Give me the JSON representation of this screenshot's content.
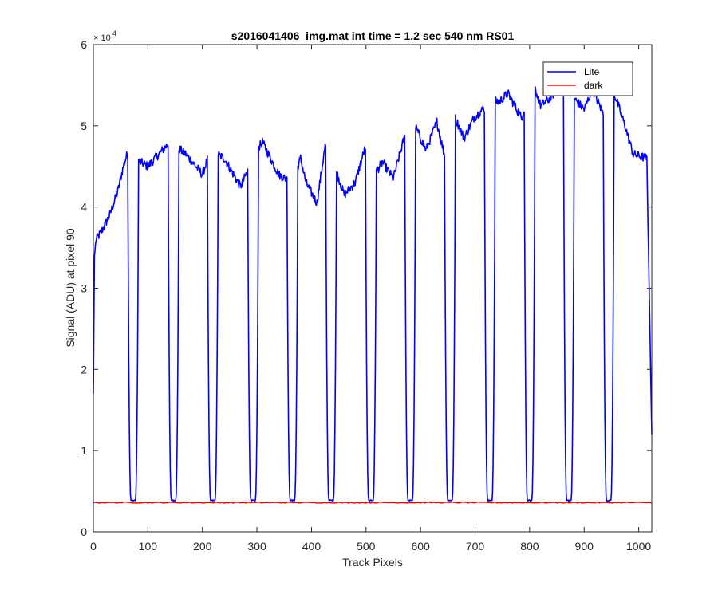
{
  "chart_data": {
    "type": "line",
    "title": "s2016041406_img.mat int time = 1.2 sec  540 nm RS01",
    "xlabel": "Track Pixels",
    "ylabel": "Signal (ADU) at pixel 90",
    "xlim": [
      0,
      1024
    ],
    "ylim": [
      0,
      60000
    ],
    "xticks": [
      0,
      100,
      200,
      300,
      400,
      500,
      600,
      700,
      800,
      900,
      1000
    ],
    "yticks": [
      0,
      10000,
      20000,
      30000,
      40000,
      50000,
      60000
    ],
    "ytick_labels": [
      "0",
      "1",
      "2",
      "3",
      "4",
      "5",
      "6"
    ],
    "y_exponent_base": "× 10",
    "y_exponent_power": "4",
    "grid": false,
    "legend_position": "top-right",
    "series": [
      {
        "name": "Lite",
        "color": "#0000ff",
        "baseline_points": [
          [
            0,
            17000
          ],
          [
            2,
            34000
          ],
          [
            5,
            36000
          ],
          [
            15,
            37000
          ],
          [
            30,
            39000
          ],
          [
            45,
            42000
          ],
          [
            55,
            45000
          ],
          [
            62,
            46500
          ],
          [
            100,
            45000
          ],
          [
            140,
            48000
          ],
          [
            170,
            46500
          ],
          [
            200,
            44000
          ],
          [
            215,
            47000
          ],
          [
            240,
            46000
          ],
          [
            270,
            42500
          ],
          [
            300,
            47000
          ],
          [
            310,
            48000
          ],
          [
            340,
            44000
          ],
          [
            365,
            43000
          ],
          [
            380,
            46000
          ],
          [
            390,
            43000
          ],
          [
            410,
            40500
          ],
          [
            425,
            47500
          ],
          [
            445,
            44500
          ],
          [
            460,
            41500
          ],
          [
            480,
            43000
          ],
          [
            497,
            47000
          ],
          [
            515,
            44000
          ],
          [
            530,
            45500
          ],
          [
            550,
            43500
          ],
          [
            570,
            48500
          ],
          [
            590,
            50000
          ],
          [
            610,
            47000
          ],
          [
            630,
            50500
          ],
          [
            645,
            46000
          ],
          [
            660,
            51500
          ],
          [
            680,
            48500
          ],
          [
            698,
            51000
          ],
          [
            730,
            53000
          ],
          [
            745,
            53000
          ],
          [
            760,
            54000
          ],
          [
            785,
            51000
          ],
          [
            805,
            55500
          ],
          [
            820,
            52500
          ],
          [
            840,
            53500
          ],
          [
            855,
            55500
          ],
          [
            880,
            53500
          ],
          [
            900,
            52000
          ],
          [
            915,
            54500
          ],
          [
            935,
            51500
          ],
          [
            955,
            54000
          ],
          [
            975,
            50000
          ],
          [
            990,
            46500
          ],
          [
            1015,
            46000
          ],
          [
            1024,
            12000
          ]
        ],
        "dip_centers": [
          73,
          147,
          219,
          293,
          365,
          436,
          509,
          581,
          654,
          727,
          800,
          872,
          945
        ],
        "dip_minimum": 3800,
        "dip_half_width": 7
      },
      {
        "name": "dark",
        "color": "#ff0000",
        "value": 3600
      }
    ]
  }
}
